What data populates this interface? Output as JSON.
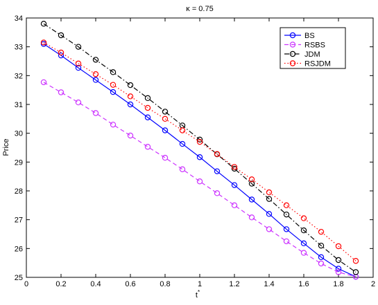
{
  "chart_data": {
    "type": "line",
    "title": "κ = 0.75",
    "xlabel": "t",
    "xlabel_superscript": "*",
    "ylabel": "Price",
    "xlim": [
      0,
      2
    ],
    "ylim": [
      25,
      34
    ],
    "grid": false,
    "legend_position": "top-right",
    "x_tick_labels": [
      "0",
      "0.2",
      "0.4",
      "0.6",
      "0.8",
      "1",
      "1.2",
      "1.4",
      "1.6",
      "1.8",
      "2"
    ],
    "y_tick_labels": [
      "25",
      "26",
      "27",
      "28",
      "29",
      "30",
      "31",
      "32",
      "33",
      "34"
    ],
    "x": [
      0.1,
      0.2,
      0.3,
      0.4,
      0.5,
      0.6,
      0.7,
      0.8,
      0.9,
      1.0,
      1.1,
      1.2,
      1.3,
      1.4,
      1.5,
      1.6,
      1.7,
      1.8,
      1.9
    ],
    "series": [
      {
        "name": "BS",
        "color": "#0000ff",
        "line_style": "solid",
        "marker": "circle",
        "values": [
          33.1,
          32.7,
          32.27,
          31.85,
          31.43,
          31.0,
          30.55,
          30.1,
          29.63,
          29.17,
          28.68,
          28.2,
          27.7,
          27.2,
          26.67,
          26.18,
          25.7,
          25.3,
          25.02
        ]
      },
      {
        "name": "RSBS",
        "color": "#cc33ff",
        "line_style": "dashed",
        "marker": "circle",
        "values": [
          31.77,
          31.42,
          31.07,
          30.7,
          30.3,
          29.92,
          29.53,
          29.15,
          28.75,
          28.33,
          27.92,
          27.5,
          27.08,
          26.67,
          26.25,
          25.85,
          25.48,
          25.18,
          25.02
        ]
      },
      {
        "name": "JDM",
        "color": "#000000",
        "line_style": "dashdot",
        "marker": "circle",
        "values": [
          33.8,
          33.4,
          33.0,
          32.55,
          32.12,
          31.67,
          31.22,
          30.75,
          30.27,
          29.78,
          29.27,
          28.77,
          28.25,
          27.72,
          27.18,
          26.63,
          26.1,
          25.6,
          25.18
        ]
      },
      {
        "name": "RSJDM",
        "color": "#ff0000",
        "line_style": "dotted",
        "marker": "circle",
        "values": [
          33.15,
          32.8,
          32.42,
          32.05,
          31.68,
          31.28,
          30.88,
          30.5,
          30.1,
          29.7,
          29.28,
          28.83,
          28.4,
          27.95,
          27.5,
          27.05,
          26.58,
          26.08,
          25.57
        ]
      }
    ]
  }
}
